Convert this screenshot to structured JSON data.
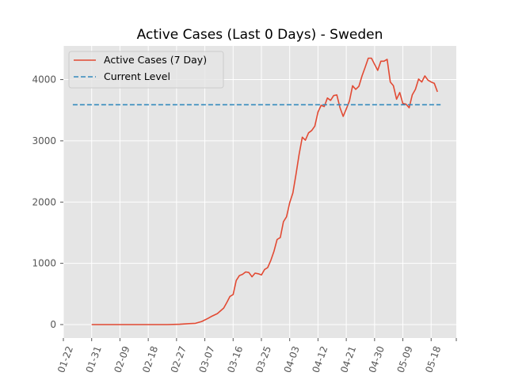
{
  "chart_data": {
    "type": "line",
    "title": "Active Cases (Last 0 Days) - Sweden",
    "xlabel": "",
    "ylabel": "",
    "x_tick_labels": [
      "01-22",
      "01-31",
      "02-09",
      "02-18",
      "02-27",
      "03-07",
      "03-16",
      "03-25",
      "04-03",
      "04-12",
      "04-21",
      "04-30",
      "05-09",
      "05-18"
    ],
    "y_ticks": [
      0,
      1000,
      2000,
      3000,
      4000
    ],
    "ylim": [
      -220,
      4550
    ],
    "xlim": [
      "2020-01-22",
      "2020-05-26"
    ],
    "grid": true,
    "legend_position": "top-left",
    "series": [
      {
        "name": "Active Cases (7 Day)",
        "style": "solid",
        "color": "#e24a33",
        "x": [
          "2020-01-31",
          "2020-02-06",
          "2020-02-12",
          "2020-02-18",
          "2020-02-24",
          "2020-02-28",
          "2020-03-02",
          "2020-03-04",
          "2020-03-06",
          "2020-03-08",
          "2020-03-09",
          "2020-03-11",
          "2020-03-13",
          "2020-03-14",
          "2020-03-15",
          "2020-03-16",
          "2020-03-17",
          "2020-03-18",
          "2020-03-19",
          "2020-03-20",
          "2020-03-21",
          "2020-03-22",
          "2020-03-23",
          "2020-03-24",
          "2020-03-25",
          "2020-03-26",
          "2020-03-27",
          "2020-03-28",
          "2020-03-29",
          "2020-03-30",
          "2020-03-31",
          "2020-04-01",
          "2020-04-02",
          "2020-04-03",
          "2020-04-04",
          "2020-04-05",
          "2020-04-06",
          "2020-04-07",
          "2020-04-08",
          "2020-04-09",
          "2020-04-10",
          "2020-04-11",
          "2020-04-12",
          "2020-04-13",
          "2020-04-14",
          "2020-04-15",
          "2020-04-16",
          "2020-04-17",
          "2020-04-18",
          "2020-04-19",
          "2020-04-20",
          "2020-04-21",
          "2020-04-22",
          "2020-04-23",
          "2020-04-24",
          "2020-04-25",
          "2020-04-26",
          "2020-04-27",
          "2020-04-28",
          "2020-04-29",
          "2020-04-30",
          "2020-05-01",
          "2020-05-02",
          "2020-05-03",
          "2020-05-04",
          "2020-05-05",
          "2020-05-06",
          "2020-05-07",
          "2020-05-08",
          "2020-05-09",
          "2020-05-10",
          "2020-05-11",
          "2020-05-12",
          "2020-05-13",
          "2020-05-14",
          "2020-05-15",
          "2020-05-16",
          "2020-05-17",
          "2020-05-18",
          "2020-05-19",
          "2020-05-20"
        ],
        "y": [
          0,
          0,
          0,
          0,
          0,
          5,
          15,
          20,
          50,
          100,
          130,
          180,
          270,
          360,
          460,
          490,
          720,
          800,
          820,
          860,
          850,
          780,
          840,
          830,
          810,
          900,
          930,
          1050,
          1200,
          1390,
          1420,
          1680,
          1760,
          1990,
          2150,
          2450,
          2780,
          3060,
          3010,
          3130,
          3170,
          3240,
          3470,
          3580,
          3560,
          3700,
          3660,
          3740,
          3750,
          3540,
          3400,
          3520,
          3650,
          3900,
          3840,
          3890,
          4060,
          4200,
          4350,
          4350,
          4250,
          4150,
          4300,
          4300,
          4330,
          3960,
          3900,
          3680,
          3790,
          3610,
          3600,
          3540,
          3750,
          3840,
          4010,
          3960,
          4060,
          3990,
          3960,
          3940,
          3800
        ]
      },
      {
        "name": "Current Level",
        "style": "dashed",
        "color": "#348abd",
        "x": [
          "2020-01-25",
          "2020-05-21"
        ],
        "y": [
          3590,
          3590
        ]
      }
    ]
  }
}
